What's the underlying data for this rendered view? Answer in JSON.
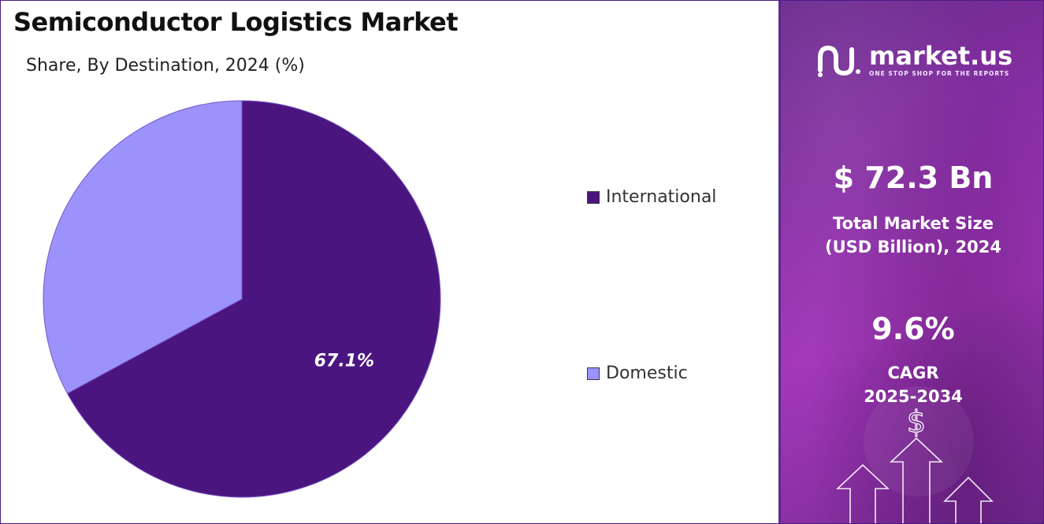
{
  "title": "Semiconductor Logistics Market",
  "subtitle": "Share, By Destination, 2024 (%)",
  "chart_data": {
    "type": "pie",
    "title": "Semiconductor Logistics Market",
    "subtitle": "Share, By Destination, 2024 (%)",
    "slices": [
      {
        "label": "International",
        "value": 67.1,
        "color": "#4b1580",
        "data_label": "67.1%"
      },
      {
        "label": "Domestic",
        "value": 32.9,
        "color": "#9b93fb",
        "data_label": ""
      }
    ],
    "legend_position": "right"
  },
  "legend": [
    {
      "label": "International",
      "color": "#4b1580"
    },
    {
      "label": "Domestic",
      "color": "#9b93fb"
    }
  ],
  "brand": {
    "name": "market.us",
    "tagline": "ONE STOP SHOP FOR THE REPORTS"
  },
  "stats": {
    "market_size_value": "$ 72.3 Bn",
    "market_size_label_line1": "Total Market Size",
    "market_size_label_line2": "(USD Billion), 2024",
    "cagr_value": "9.6%",
    "cagr_label_line1": "CAGR",
    "cagr_label_line2": "2025-2034"
  },
  "decor": {
    "dollar_symbol": "$"
  }
}
